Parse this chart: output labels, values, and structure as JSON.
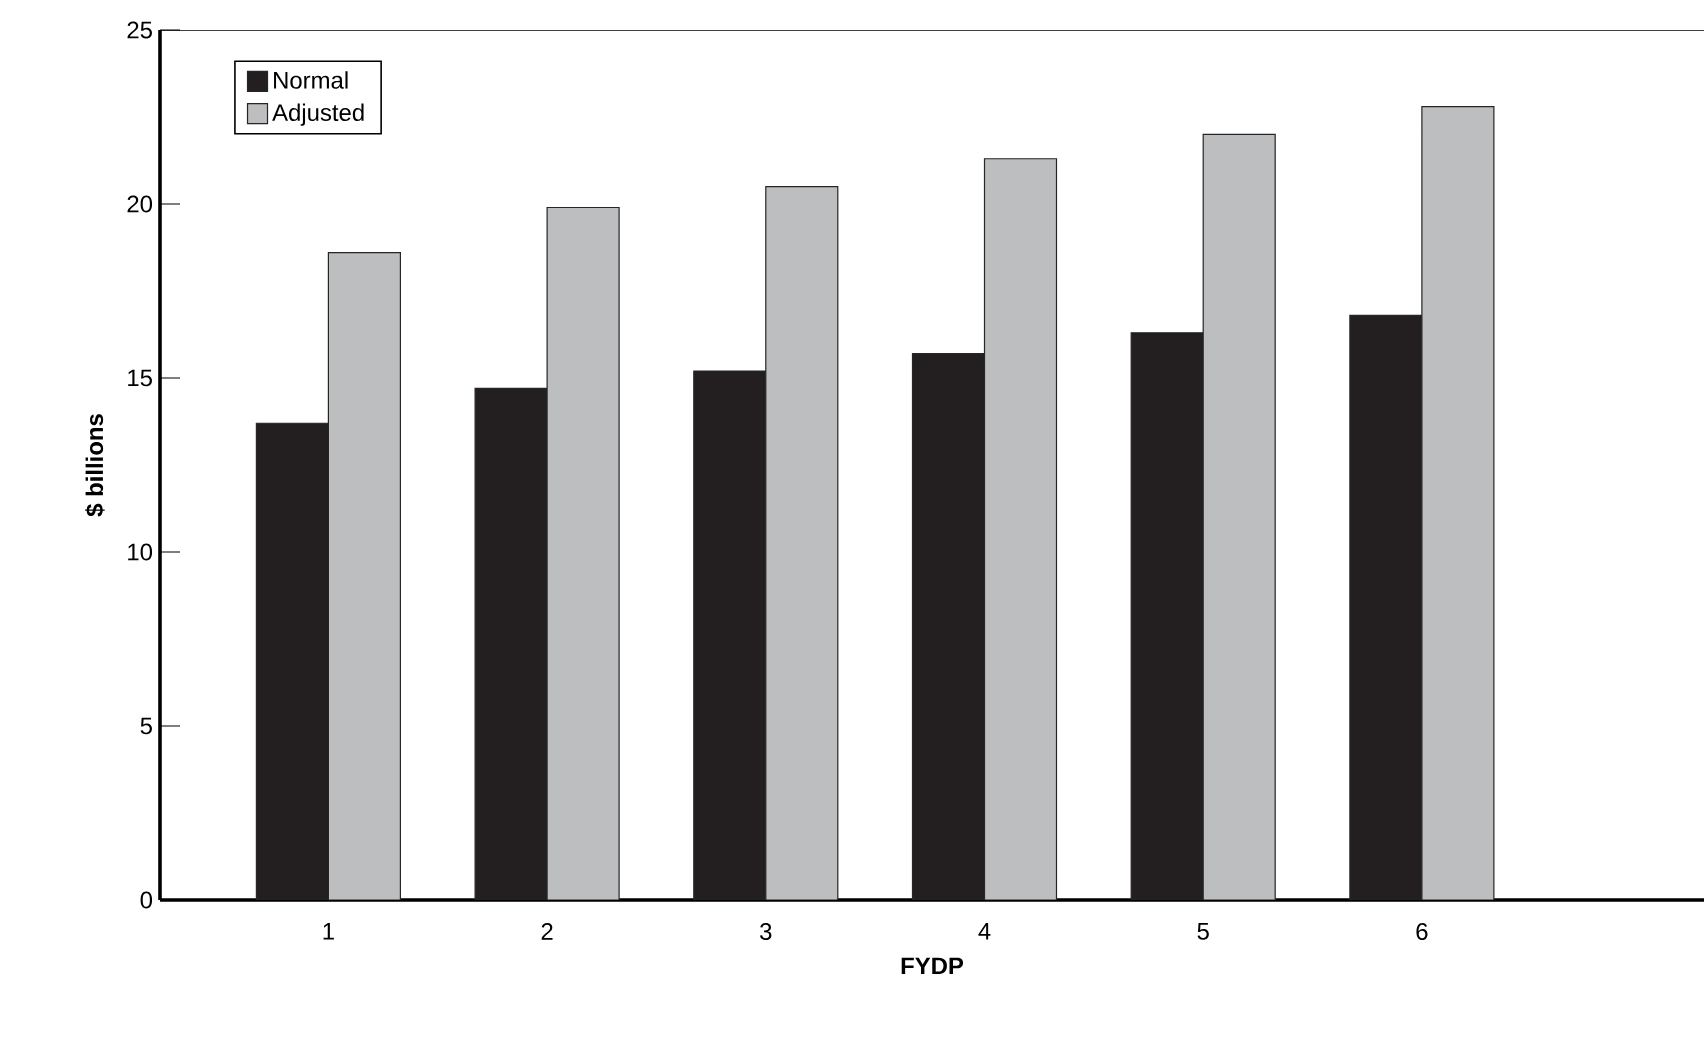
{
  "chart_data": {
    "type": "bar",
    "xlabel": "FYDP",
    "ylabel": "$ billions",
    "categories": [
      "1",
      "2",
      "3",
      "4",
      "5",
      "6"
    ],
    "series": [
      {
        "name": "Normal",
        "color": "#231f20",
        "values": [
          13.7,
          14.7,
          15.2,
          15.7,
          16.3,
          16.8
        ]
      },
      {
        "name": "Adjusted",
        "color": "#bcbec0",
        "values": [
          18.6,
          19.9,
          20.5,
          21.3,
          22.0,
          22.8
        ]
      }
    ],
    "ylim": [
      0,
      25
    ],
    "yticks": [
      0,
      5,
      10,
      15,
      20,
      25
    ],
    "grid": false,
    "legend": "top left"
  }
}
